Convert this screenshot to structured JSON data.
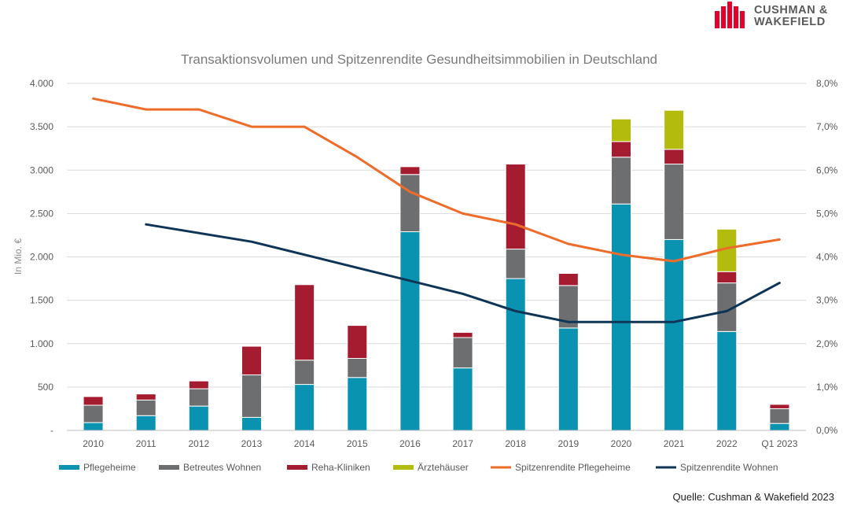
{
  "brand": {
    "line1": "CUSHMAN &",
    "line2": "WAKEFIELD",
    "color": "#e4002b"
  },
  "source_text": "Quelle: Cushman & Wakefield 2023",
  "chart_data": {
    "type": "bar",
    "stacked": true,
    "title": "Transaktionsvolumen und Spitzenrendite Gesundheitsimmobilien in Deutschland",
    "ylabel": "In Mio. €",
    "xlabel": "",
    "ylim": [
      0,
      4000
    ],
    "y_ticks": [
      "-",
      "500",
      "1.000",
      "1.500",
      "2.000",
      "2.500",
      "3.000",
      "3.500",
      "4.000"
    ],
    "y2lim": [
      0,
      8
    ],
    "y2_ticks": [
      "0,0%",
      "1,0%",
      "2,0%",
      "3,0%",
      "4,0%",
      "5,0%",
      "6,0%",
      "7,0%",
      "8,0%"
    ],
    "grid": true,
    "legend_position": "bottom",
    "categories": [
      "2010",
      "2011",
      "2012",
      "2013",
      "2014",
      "2015",
      "2016",
      "2017",
      "2018",
      "2019",
      "2020",
      "2021",
      "2022",
      "Q1 2023"
    ],
    "series": [
      {
        "name": "Pflegeheime",
        "kind": "bar",
        "color": "#0a93b0",
        "values": [
          90,
          170,
          280,
          150,
          530,
          610,
          2290,
          720,
          1750,
          1180,
          2610,
          2200,
          1140,
          80
        ]
      },
      {
        "name": "Betreutes Wohnen",
        "kind": "bar",
        "color": "#6d6e70",
        "values": [
          200,
          180,
          200,
          490,
          280,
          220,
          660,
          350,
          340,
          490,
          540,
          870,
          560,
          170
        ]
      },
      {
        "name": "Reha-Kliniken",
        "kind": "bar",
        "color": "#a51c30",
        "values": [
          100,
          70,
          90,
          330,
          870,
          380,
          90,
          60,
          980,
          140,
          180,
          170,
          130,
          50
        ]
      },
      {
        "name": "Ärztehäuser",
        "kind": "bar",
        "color": "#b3bb0c",
        "values": [
          0,
          0,
          0,
          0,
          0,
          0,
          0,
          0,
          0,
          0,
          260,
          450,
          490,
          0
        ]
      },
      {
        "name": "Spitzenrendite Pflegeheime",
        "kind": "line",
        "axis": "right",
        "color": "#ee6c2a",
        "values": [
          7.65,
          7.4,
          7.4,
          7.0,
          7.0,
          6.3,
          5.5,
          5.0,
          4.75,
          4.3,
          4.05,
          3.9,
          4.2,
          4.4
        ]
      },
      {
        "name": "Spitzenrendite Wohnen",
        "kind": "line",
        "axis": "right",
        "color": "#0e3456",
        "values": [
          null,
          4.75,
          4.55,
          4.35,
          4.05,
          3.75,
          3.45,
          3.15,
          2.75,
          2.5,
          2.5,
          2.5,
          2.75,
          3.4
        ]
      }
    ]
  }
}
